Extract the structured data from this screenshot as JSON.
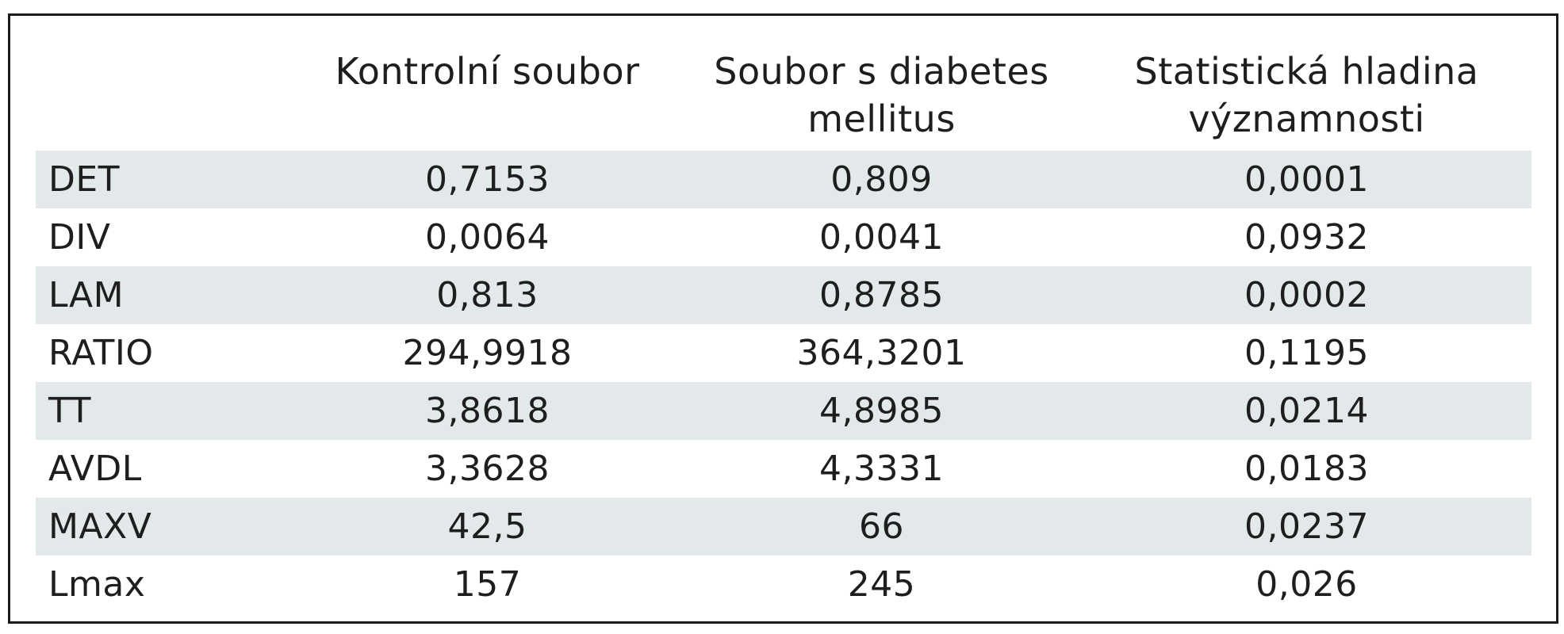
{
  "table": {
    "columns": [
      "",
      "Kontrolní soubor",
      "Soubor s diabetes mellitus",
      "Statistická hladina významnosti"
    ],
    "rows": [
      {
        "label": "DET",
        "control": "0,7153",
        "diabetes": "0,809",
        "significance": "0,0001"
      },
      {
        "label": "DIV",
        "control": "0,0064",
        "diabetes": "0,0041",
        "significance": "0,0932"
      },
      {
        "label": "LAM",
        "control": "0,813",
        "diabetes": "0,8785",
        "significance": "0,0002"
      },
      {
        "label": "RATIO",
        "control": "294,9918",
        "diabetes": "364,3201",
        "significance": "0,1195"
      },
      {
        "label": "TT",
        "control": "3,8618",
        "diabetes": "4,8985",
        "significance": "0,0214"
      },
      {
        "label": "AVDL",
        "control": "3,3628",
        "diabetes": "4,3331",
        "significance": "0,0183"
      },
      {
        "label": "MAXV",
        "control": "42,5",
        "diabetes": "66",
        "significance": "0,0237"
      },
      {
        "label": "Lmax",
        "control": "157",
        "diabetes": "245",
        "significance": "0,026"
      }
    ]
  },
  "colors": {
    "stripe": "#e3e9ea",
    "border": "#1a1a1a",
    "text": "#1e1e1e"
  }
}
